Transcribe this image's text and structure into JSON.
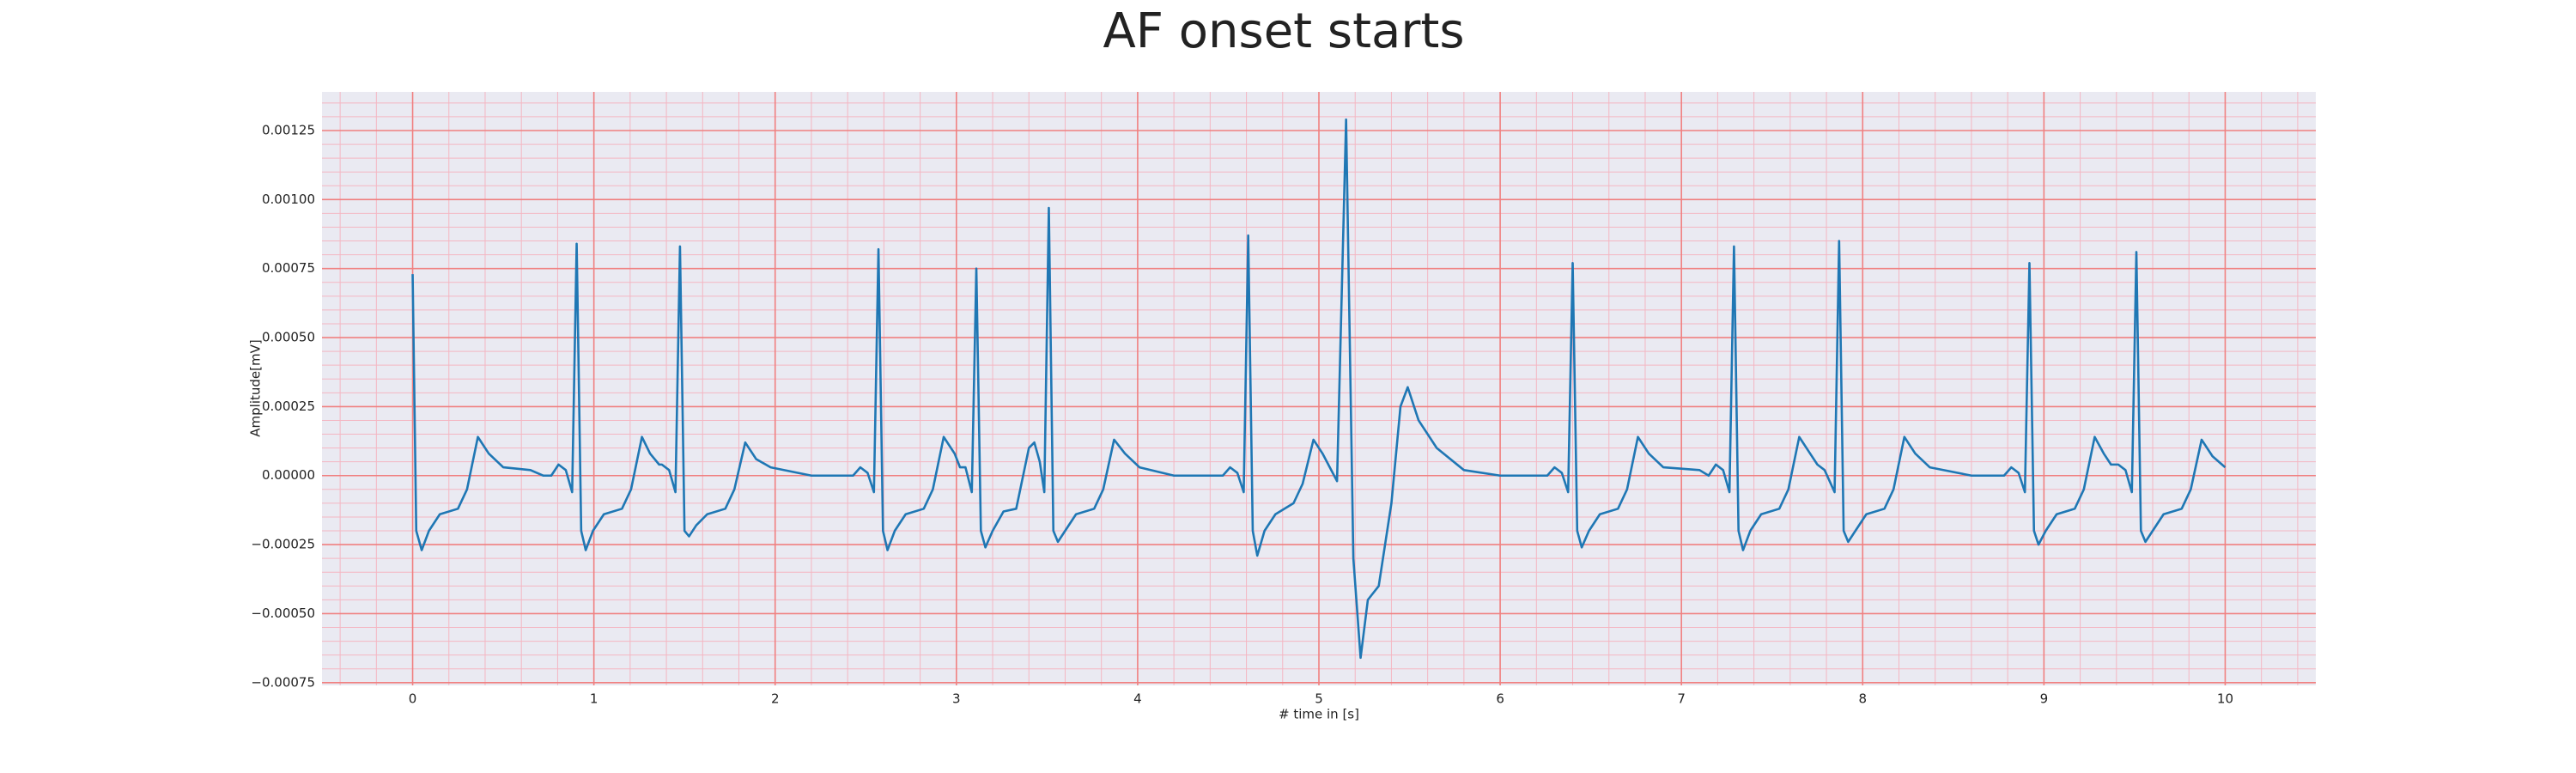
{
  "chart_data": {
    "type": "line",
    "title": "AF onset starts",
    "xlabel": "# time in [s]",
    "ylabel": "Amplitude[mV]",
    "color": "#1f77b4",
    "grid": true,
    "minor_grid": true,
    "xlim": [
      -0.5,
      10.5
    ],
    "xticks": [
      0,
      1,
      2,
      3,
      4,
      5,
      6,
      7,
      8,
      9,
      10
    ],
    "ylim": [
      -0.00076,
      0.00139
    ],
    "yticks": [
      {
        "value": -0.00075,
        "label": "−0.00075"
      },
      {
        "value": -0.0005,
        "label": "−0.00050"
      },
      {
        "value": -0.00025,
        "label": "−0.00025"
      },
      {
        "value": 0,
        "label": "0.00000"
      },
      0.00025,
      {
        "value": 0.0005,
        "label": "0.00050"
      },
      0.00075,
      {
        "value": 0.001,
        "label": "0.00100"
      },
      0.00125
    ],
    "x": [
      0,
      0.02,
      0.05,
      0.09,
      0.15,
      0.25,
      0.3,
      0.36,
      0.42,
      0.5,
      0.65,
      0.72,
      0.765,
      0.805,
      0.845,
      0.88,
      0.905,
      0.93,
      0.955,
      0.995,
      1.055,
      1.155,
      1.205,
      1.265,
      1.31,
      1.36,
      1.375,
      1.415,
      1.45,
      1.475,
      1.5,
      1.525,
      1.565,
      1.625,
      1.725,
      1.775,
      1.835,
      1.895,
      1.975,
      2.2,
      2.43,
      2.47,
      2.51,
      2.545,
      2.57,
      2.595,
      2.62,
      2.66,
      2.72,
      2.82,
      2.87,
      2.93,
      2.99,
      3.02,
      3.05,
      3.085,
      3.11,
      3.135,
      3.16,
      3.2,
      3.26,
      3.33,
      3.4,
      3.43,
      3.46,
      3.485,
      3.51,
      3.535,
      3.56,
      3.6,
      3.66,
      3.76,
      3.81,
      3.87,
      3.93,
      4.01,
      4.2,
      4.47,
      4.51,
      4.55,
      4.585,
      4.61,
      4.635,
      4.66,
      4.7,
      4.76,
      4.86,
      4.91,
      4.97,
      5.02,
      5.06,
      5.1,
      5.15,
      5.19,
      5.23,
      5.27,
      5.33,
      5.4,
      5.45,
      5.49,
      5.55,
      5.65,
      5.8,
      6,
      6.26,
      6.3,
      6.34,
      6.375,
      6.4,
      6.425,
      6.45,
      6.49,
      6.55,
      6.65,
      6.7,
      6.76,
      6.82,
      6.9,
      7.1,
      7.15,
      7.19,
      7.23,
      7.265,
      7.29,
      7.315,
      7.34,
      7.38,
      7.44,
      7.54,
      7.59,
      7.65,
      7.71,
      7.75,
      7.79,
      7.845,
      7.87,
      7.895,
      7.92,
      7.96,
      8.02,
      8.12,
      8.17,
      8.23,
      8.29,
      8.37,
      8.6,
      8.78,
      8.82,
      8.86,
      8.895,
      8.92,
      8.945,
      8.97,
      9.01,
      9.07,
      9.17,
      9.22,
      9.28,
      9.33,
      9.37,
      9.41,
      9.45,
      9.485,
      9.51,
      9.535,
      9.56,
      9.6,
      9.66,
      9.76,
      9.81,
      9.87,
      9.93,
      10
    ],
    "values": [
      0.00073,
      -0.0002,
      -0.00027,
      -0.0002,
      -0.00014,
      -0.00012,
      -5e-05,
      0.00014,
      8e-05,
      3e-05,
      2e-05,
      0,
      0,
      4e-05,
      2e-05,
      -6e-05,
      0.00084,
      -0.0002,
      -0.00027,
      -0.0002,
      -0.00014,
      -0.00012,
      -5e-05,
      0.00014,
      8e-05,
      4e-05,
      4e-05,
      2e-05,
      -6e-05,
      0.00083,
      -0.0002,
      -0.00022,
      -0.00018,
      -0.00014,
      -0.00012,
      -5e-05,
      0.00012,
      6e-05,
      3e-05,
      0,
      0,
      3e-05,
      1e-05,
      -6e-05,
      0.00082,
      -0.0002,
      -0.00027,
      -0.0002,
      -0.00014,
      -0.00012,
      -5e-05,
      0.00014,
      8e-05,
      3e-05,
      3e-05,
      -6e-05,
      0.00075,
      -0.0002,
      -0.00026,
      -0.0002,
      -0.00013,
      -0.00012,
      0.0001,
      0.00012,
      5e-05,
      -6e-05,
      0.00097,
      -0.0002,
      -0.00024,
      -0.0002,
      -0.00014,
      -0.00012,
      -5e-05,
      0.00013,
      8e-05,
      3e-05,
      0,
      0,
      3e-05,
      1e-05,
      -6e-05,
      0.00087,
      -0.0002,
      -0.00029,
      -0.0002,
      -0.00014,
      -0.0001,
      -3e-05,
      0.00013,
      8e-05,
      3e-05,
      -2e-05,
      0.00129,
      -0.0003,
      -0.00066,
      -0.00045,
      -0.0004,
      -0.0001,
      0.00025,
      0.00032,
      0.0002,
      0.0001,
      2e-05,
      0,
      0,
      3e-05,
      1e-05,
      -6e-05,
      0.00077,
      -0.0002,
      -0.00026,
      -0.0002,
      -0.00014,
      -0.00012,
      -5e-05,
      0.00014,
      8e-05,
      3e-05,
      2e-05,
      0,
      4e-05,
      2e-05,
      -6e-05,
      0.00083,
      -0.0002,
      -0.00027,
      -0.0002,
      -0.00014,
      -0.00012,
      -5e-05,
      0.00014,
      8e-05,
      4e-05,
      2e-05,
      -6e-05,
      0.00085,
      -0.0002,
      -0.00024,
      -0.0002,
      -0.00014,
      -0.00012,
      -5e-05,
      0.00014,
      8e-05,
      3e-05,
      0,
      0,
      3e-05,
      1e-05,
      -6e-05,
      0.00077,
      -0.0002,
      -0.00025,
      -0.0002,
      -0.00014,
      -0.00012,
      -5e-05,
      0.00014,
      8e-05,
      4e-05,
      4e-05,
      2e-05,
      -6e-05,
      0.00081,
      -0.0002,
      -0.00024,
      -0.0002,
      -0.00014,
      -0.00012,
      -5e-05,
      0.00013,
      7e-05,
      3e-05
    ]
  }
}
